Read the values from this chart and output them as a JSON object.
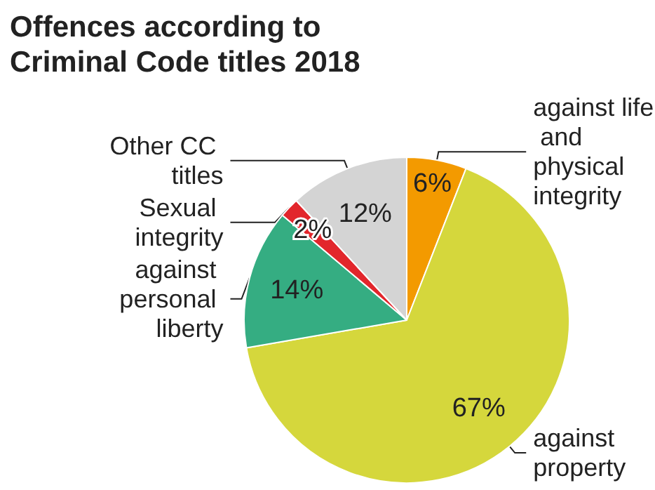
{
  "chart_data": {
    "type": "pie",
    "title": "Offences according to Criminal Code titles 2018",
    "categories": [
      "against life and physical integrity",
      "against property",
      "against personal liberty",
      "Sexual integrity",
      "Other CC titles"
    ],
    "values": [
      6,
      67,
      14,
      2,
      12
    ],
    "colors": [
      "#f39a00",
      "#d5d73c",
      "#35ad82",
      "#e2262c",
      "#d4d4d4"
    ],
    "value_labels": [
      "6%",
      "67%",
      "14%",
      "2%",
      "12%"
    ],
    "legend": false
  }
}
